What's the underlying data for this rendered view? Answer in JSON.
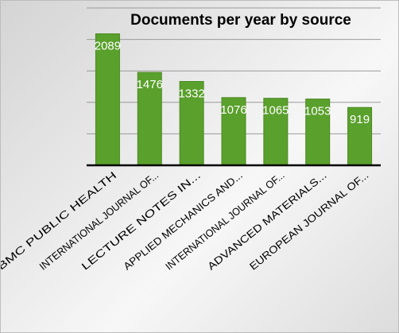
{
  "chart_data": {
    "type": "bar",
    "title": "Documents per year by source",
    "xlabel": "",
    "ylabel": "",
    "categories": [
      "BMC PUBLIC HEALTH",
      "INTERNATIONAL JOURNAL OF...",
      "LECTURE NOTES IN...",
      "APPLIED MECHANICS AND...",
      "INTERNATIONAL JOURNAL OF...",
      "ADVANCED MATERIALS...",
      "EUROPEAN JOURNAL OF..."
    ],
    "values": [
      2089,
      1476,
      1332,
      1076,
      1065,
      1053,
      919
    ],
    "data_labels": [
      "2089",
      "1476",
      "1332",
      "1076",
      "1065",
      "1053",
      "919"
    ],
    "ylim": [
      0,
      2500
    ],
    "grid": true,
    "legend": "none",
    "colors": {
      "bar": "#5aa02c",
      "bar_edge": "#4a8a22",
      "grid": "#9a9a9a",
      "axis": "#000000",
      "label": "#ffffff"
    }
  }
}
